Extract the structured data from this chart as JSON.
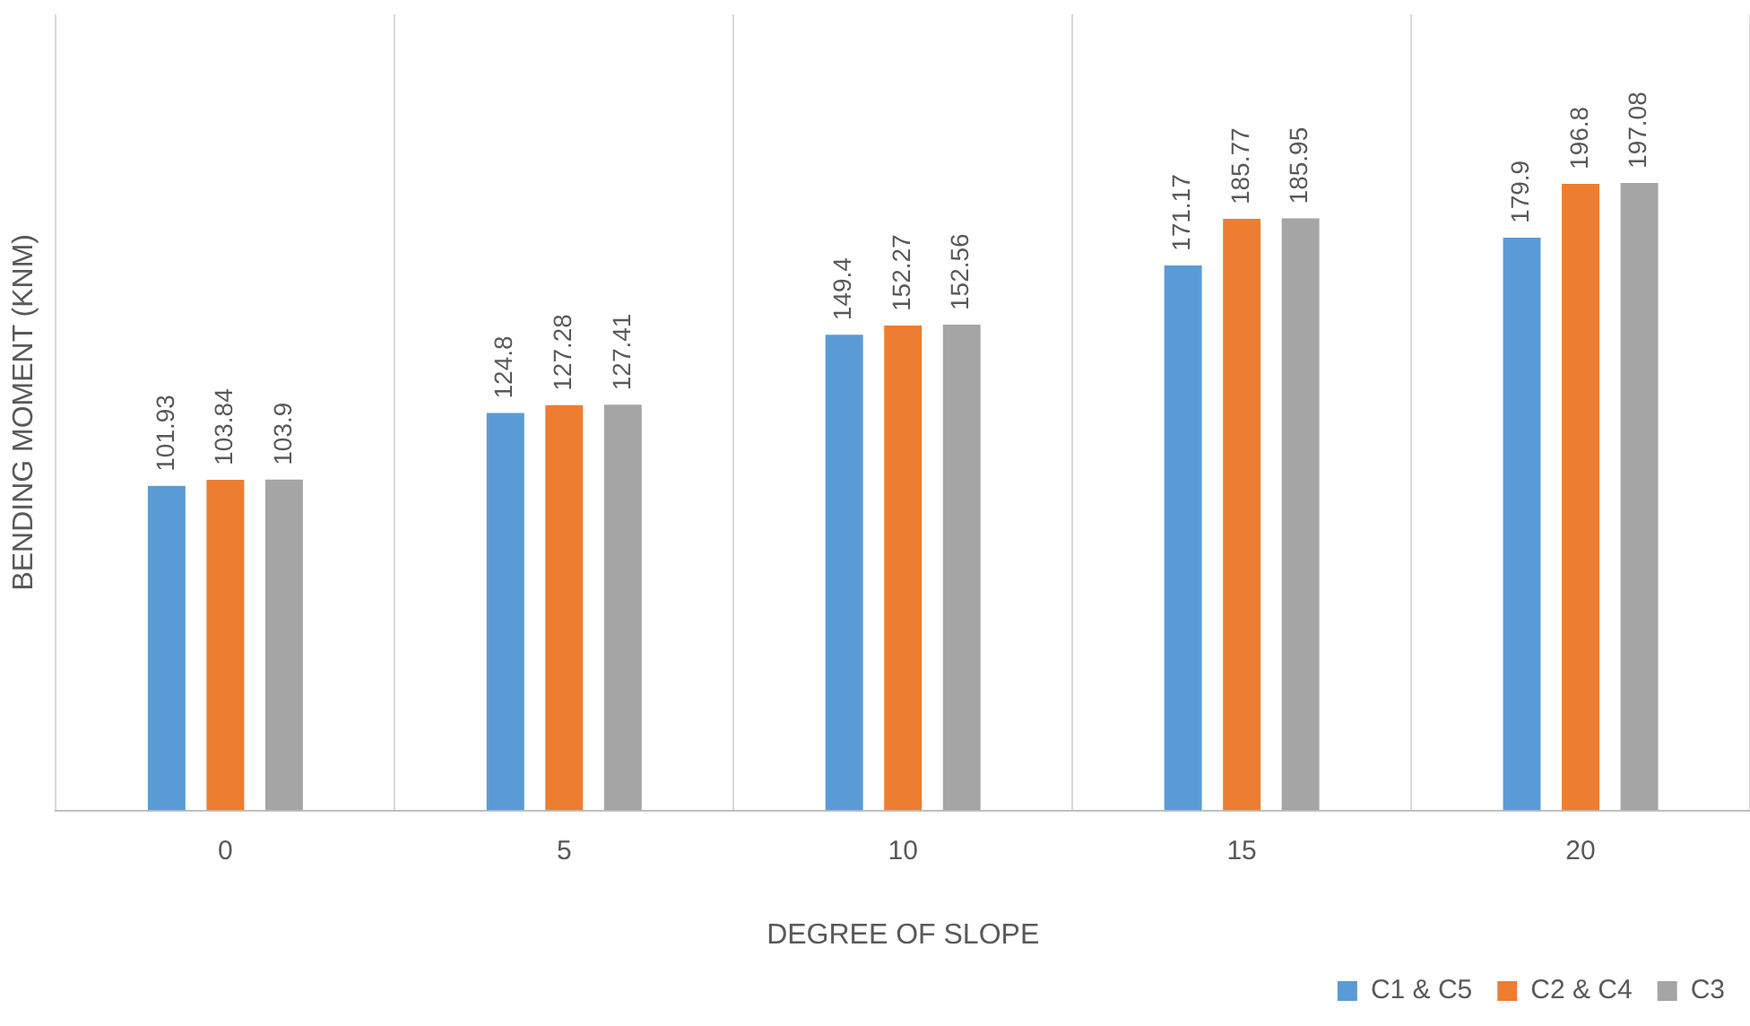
{
  "chart_data": {
    "type": "bar",
    "xlabel": "DEGREE OF SLOPE",
    "ylabel": "BENDING MOMENT (KNM)",
    "categories": [
      "0",
      "5",
      "10",
      "15",
      "20"
    ],
    "series": [
      {
        "name": "C1 & C5",
        "color": "#5b9bd5",
        "values": [
          101.93,
          124.8,
          149.4,
          171.17,
          179.9
        ]
      },
      {
        "name": "C2 & C4",
        "color": "#ed7d31",
        "values": [
          103.84,
          127.28,
          152.27,
          185.77,
          196.8
        ]
      },
      {
        "name": "C3",
        "color": "#a5a5a5",
        "values": [
          103.9,
          127.41,
          152.56,
          185.95,
          197.08
        ]
      }
    ],
    "ylim": [
      0,
      250
    ],
    "tick_labels": "x",
    "grid": "x",
    "legend": "bottom right",
    "data_labels": true
  }
}
